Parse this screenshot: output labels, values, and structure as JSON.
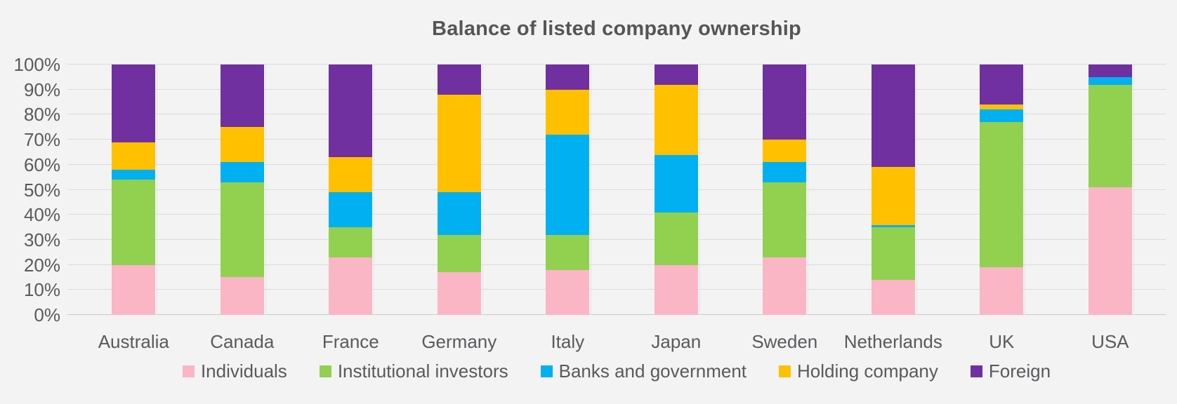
{
  "page": {
    "background": "#F3F3F3"
  },
  "chart_data": {
    "type": "bar",
    "variant": "100-percent-stacked-column",
    "title": "Balance of listed company ownership",
    "xlabel": "",
    "ylabel": "",
    "ylim": [
      0,
      100
    ],
    "yticks": [
      0,
      10,
      20,
      30,
      40,
      50,
      60,
      70,
      80,
      90,
      100
    ],
    "ytick_labels": [
      "0%",
      "10%",
      "20%",
      "30%",
      "40%",
      "50%",
      "60%",
      "70%",
      "80%",
      "90%",
      "100%"
    ],
    "grid": true,
    "legend_position": "bottom",
    "categories": [
      "Australia",
      "Canada",
      "France",
      "Germany",
      "Italy",
      "Japan",
      "Sweden",
      "Netherlands",
      "UK",
      "USA"
    ],
    "series": [
      {
        "name": "Individuals",
        "color": "#FBB6C5",
        "values": [
          20,
          15,
          23,
          17,
          18,
          20,
          23,
          14,
          19,
          51
        ]
      },
      {
        "name": "Institutional investors",
        "color": "#92D050",
        "values": [
          34,
          38,
          12,
          15,
          14,
          21,
          30,
          21,
          58,
          41
        ]
      },
      {
        "name": "Banks and government",
        "color": "#00B0F0",
        "values": [
          4,
          8,
          14,
          17,
          40,
          23,
          8,
          1,
          5,
          3
        ]
      },
      {
        "name": "Holding company",
        "color": "#FFC000",
        "values": [
          11,
          14,
          14,
          39,
          18,
          28,
          9,
          23,
          2,
          0
        ]
      },
      {
        "name": "Foreign",
        "color": "#7030A0",
        "values": [
          31,
          25,
          37,
          12,
          10,
          8,
          30,
          41,
          16,
          5
        ]
      }
    ],
    "colors": {
      "background": "#F3F3F3",
      "gridline": "#DBDBDB",
      "axis_line": "#C9C9C9",
      "text": "#5A5A5E",
      "title_text": "#555558"
    }
  }
}
